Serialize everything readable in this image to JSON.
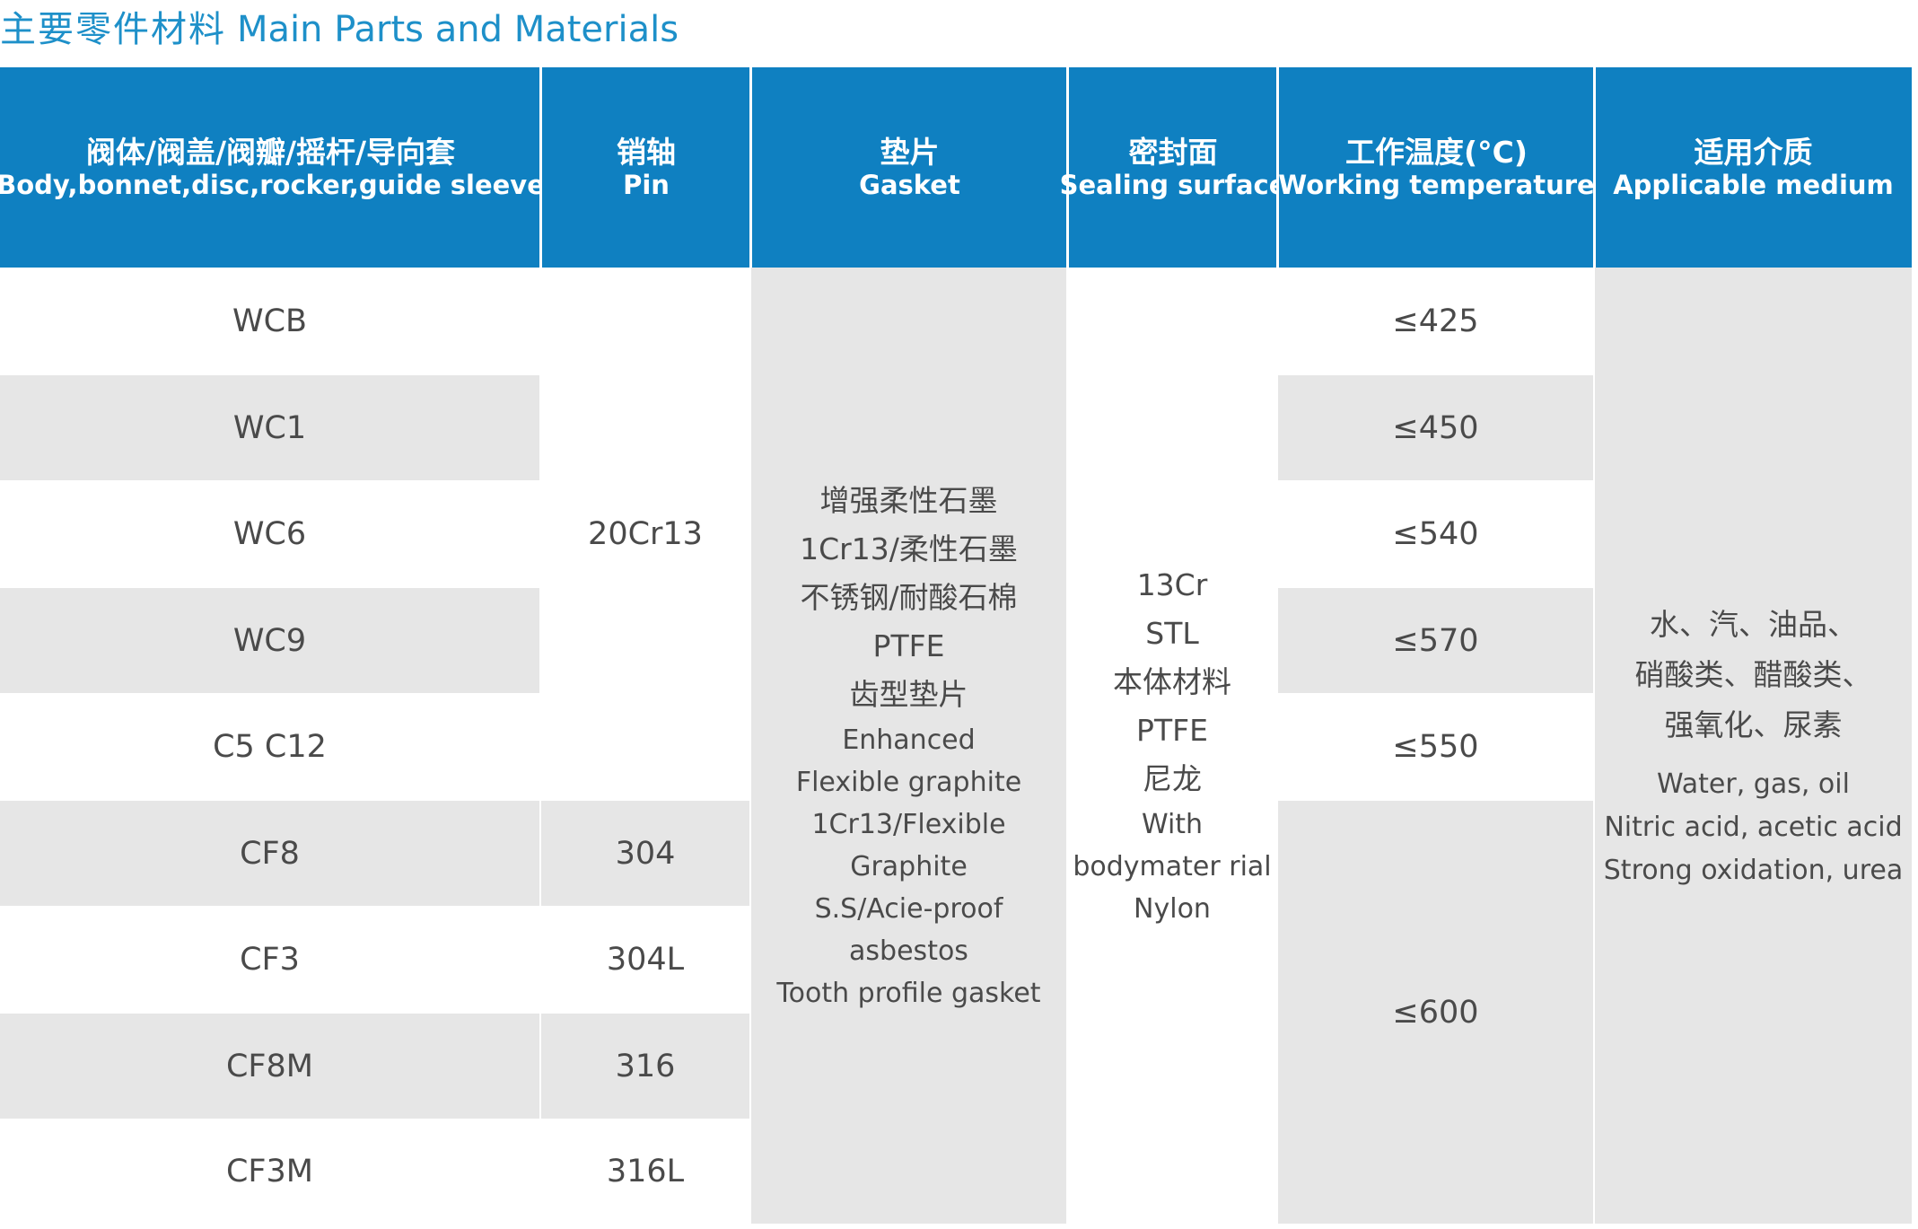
{
  "title": {
    "cn": "主要零件材料",
    "en": "Main Parts and Materials"
  },
  "headers": [
    {
      "cn": "阀体/阀盖/阀瓣/摇杆/导向套",
      "en": "Body,bonnet,disc,rocker,guide sleeve"
    },
    {
      "cn": "销轴",
      "en": "Pin"
    },
    {
      "cn": "垫片",
      "en": "Gasket"
    },
    {
      "cn": "密封面",
      "en": "Sealing surface"
    },
    {
      "cn": "工作温度(°C)",
      "en": "Working temperature"
    },
    {
      "cn": "适用介质",
      "en": "Applicable medium"
    }
  ],
  "body_materials": [
    "WCB",
    "WC1",
    "WC6",
    "WC9",
    "C5 C12",
    "CF8",
    "CF3",
    "CF8M",
    "CF3M"
  ],
  "pins": {
    "carbon": "20Cr13",
    "cf8": "304",
    "cf3": "304L",
    "cf8m": "316",
    "cf3m": "316L"
  },
  "gasket": {
    "cn": [
      "增强柔性石墨",
      "1Cr13/柔性石墨",
      "不锈钢/耐酸石棉",
      "PTFE",
      "齿型垫片"
    ],
    "en": [
      "Enhanced",
      "Flexible graphite",
      "1Cr13/Flexible",
      "Graphite",
      "S.S/Acie-proof",
      "asbestos",
      "Tooth profile gasket"
    ]
  },
  "sealing": {
    "cn": [
      "13Cr",
      "STL",
      "本体材料",
      "PTFE",
      "尼龙"
    ],
    "en": [
      "With",
      "bodymater rial",
      "Nylon"
    ]
  },
  "temperatures": {
    "wcb": "≤425",
    "wc1": "≤450",
    "wc6": "≤540",
    "wc9": "≤570",
    "c5c12": "≤550",
    "stainless": "≤600"
  },
  "medium": {
    "cn": [
      "水、汽、油品、",
      "硝酸类、醋酸类、",
      "强氧化、尿素"
    ],
    "en": [
      "Water, gas, oil",
      "Nitric acid, acetic acid",
      "Strong oxidation, urea"
    ]
  },
  "colors": {
    "title": "#1e90c9",
    "header_bg": "#0f80c1",
    "row_gray": "#e6e6e6",
    "row_white": "#ffffff"
  }
}
